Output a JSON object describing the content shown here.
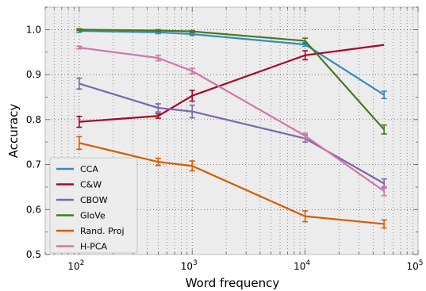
{
  "chart_data": {
    "type": "line",
    "xlabel": "Word frequency",
    "ylabel": "Accuracy",
    "x_scale": "log",
    "xlim": [
      50,
      100000
    ],
    "ylim": [
      0.5,
      1.05
    ],
    "x_ticks": [
      {
        "value": 100,
        "base": "10",
        "exp": "2"
      },
      {
        "value": 1000,
        "base": "10",
        "exp": "3"
      },
      {
        "value": 10000,
        "base": "10",
        "exp": "4"
      },
      {
        "value": 100000,
        "base": "10",
        "exp": "5"
      }
    ],
    "y_ticks": [
      {
        "value": 0.5,
        "label": "0.5"
      },
      {
        "value": 0.6,
        "label": "0.6"
      },
      {
        "value": 0.7,
        "label": "0.7"
      },
      {
        "value": 0.8,
        "label": "0.8"
      },
      {
        "value": 0.9,
        "label": "0.9"
      },
      {
        "value": 1.0,
        "label": "1.0"
      }
    ],
    "grid": true,
    "grid_style": "dotted",
    "legend_position": "lower-left",
    "background": "#ececec",
    "x": [
      100,
      500,
      1000,
      10000,
      50000
    ],
    "series": [
      {
        "name": "CCA",
        "color": "#348abd",
        "values": [
          0.997,
          0.994,
          0.99,
          0.967,
          0.855
        ],
        "err": [
          0.003,
          0.003,
          0.003,
          0.004,
          0.008
        ]
      },
      {
        "name": "C&W",
        "color": "#a60628",
        "values": [
          0.795,
          0.808,
          0.853,
          0.943,
          0.966
        ],
        "err": [
          0.012,
          0.005,
          0.012,
          0.01,
          0.0
        ]
      },
      {
        "name": "CBOW",
        "color": "#7a68a6",
        "values": [
          0.88,
          0.826,
          0.818,
          0.758,
          0.658
        ],
        "err": [
          0.012,
          0.009,
          0.014,
          0.008,
          0.01
        ]
      },
      {
        "name": "GloVe",
        "color": "#467821",
        "values": [
          1.0,
          0.998,
          0.996,
          0.975,
          0.778
        ],
        "err": [
          0.002,
          0.002,
          0.002,
          0.006,
          0.01
        ]
      },
      {
        "name": "Rand. Proj",
        "color": "#d55e00",
        "values": [
          0.748,
          0.706,
          0.697,
          0.585,
          0.568
        ],
        "err": [
          0.014,
          0.008,
          0.011,
          0.012,
          0.009
        ]
      },
      {
        "name": "H-PCA",
        "color": "#cc79a7",
        "values": [
          0.96,
          0.937,
          0.908,
          0.764,
          0.641
        ],
        "err": [
          0.003,
          0.006,
          0.006,
          0.006,
          0.01
        ]
      }
    ]
  }
}
